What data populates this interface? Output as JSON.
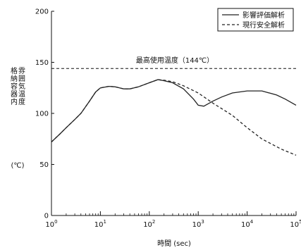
{
  "chart_data": {
    "type": "line",
    "xlabel": "時間 (sec)",
    "ylabel_lines": [
      "格納容器内雰囲気温度",
      "(℃)"
    ],
    "x_scale": "log",
    "xlim": [
      1,
      100000
    ],
    "ylim": [
      0,
      200
    ],
    "x_ticks": [
      {
        "value": 1,
        "base": "10",
        "exp": "0"
      },
      {
        "value": 10,
        "base": "10",
        "exp": "1"
      },
      {
        "value": 100,
        "base": "10",
        "exp": "2"
      },
      {
        "value": 1000,
        "base": "10",
        "exp": "3"
      },
      {
        "value": 10000,
        "base": "10",
        "exp": "4"
      },
      {
        "value": 100000,
        "base": "10",
        "exp": "5"
      }
    ],
    "y_ticks": [
      "0",
      "50",
      "100",
      "150",
      "200"
    ],
    "legend_position": "top-right",
    "annotation": {
      "text": "最高使用温度（144℃）",
      "y": 144
    },
    "series": [
      {
        "name": "影響評価解析",
        "style": "solid",
        "color": "#222222",
        "points": [
          [
            1,
            72
          ],
          [
            1.5,
            80
          ],
          [
            2,
            86
          ],
          [
            3,
            94
          ],
          [
            4,
            100
          ],
          [
            6,
            112
          ],
          [
            8,
            121
          ],
          [
            10,
            125
          ],
          [
            15,
            126.5
          ],
          [
            20,
            126
          ],
          [
            30,
            124
          ],
          [
            40,
            124
          ],
          [
            60,
            126
          ],
          [
            100,
            130
          ],
          [
            150,
            133
          ],
          [
            200,
            132
          ],
          [
            300,
            130
          ],
          [
            500,
            124
          ],
          [
            800,
            114
          ],
          [
            1000,
            108
          ],
          [
            1300,
            107
          ],
          [
            2000,
            112
          ],
          [
            3000,
            116
          ],
          [
            5000,
            120
          ],
          [
            10000,
            122
          ],
          [
            20000,
            122
          ],
          [
            40000,
            118
          ],
          [
            60000,
            114
          ],
          [
            100000,
            108
          ]
        ]
      },
      {
        "name": "現行安全解析",
        "style": "dashed",
        "color": "#222222",
        "points": [
          [
            1,
            72
          ],
          [
            1.5,
            80
          ],
          [
            2,
            86
          ],
          [
            3,
            94
          ],
          [
            4,
            100
          ],
          [
            6,
            112
          ],
          [
            8,
            121
          ],
          [
            10,
            125
          ],
          [
            15,
            126.5
          ],
          [
            20,
            126
          ],
          [
            30,
            124
          ],
          [
            40,
            124
          ],
          [
            60,
            126
          ],
          [
            100,
            130
          ],
          [
            150,
            133
          ],
          [
            200,
            132.5
          ],
          [
            300,
            131
          ],
          [
            500,
            127
          ],
          [
            1000,
            120
          ],
          [
            2000,
            110
          ],
          [
            5000,
            98
          ],
          [
            10000,
            86
          ],
          [
            20000,
            75
          ],
          [
            50000,
            65
          ],
          [
            100000,
            59
          ]
        ]
      }
    ]
  }
}
